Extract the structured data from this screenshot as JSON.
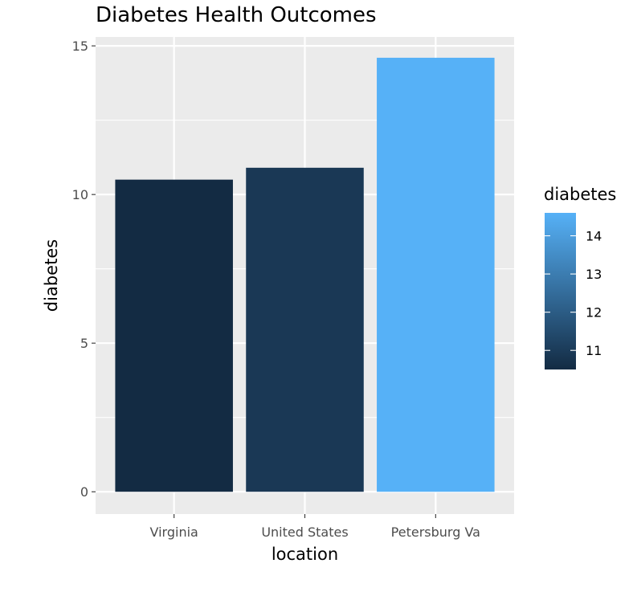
{
  "chart_data": {
    "type": "bar",
    "title": "Diabetes Health Outcomes",
    "xlabel": "location",
    "ylabel": "diabetes",
    "categories": [
      "Virginia",
      "United States",
      "Petersburg Va"
    ],
    "values": [
      10.5,
      10.9,
      14.6
    ],
    "ylim": [
      -0.75,
      15.3
    ],
    "yticks": [
      0,
      5,
      10,
      15
    ],
    "grid": true,
    "legend": {
      "title": "diabetes",
      "position": "right",
      "type": "colorbar",
      "range": [
        10.5,
        14.6
      ],
      "ticks": [
        11,
        12,
        13,
        14
      ],
      "color_low": "#132b43",
      "color_high": "#56b1f7"
    },
    "colors": {
      "panel_background": "#ebebeb",
      "grid": "#ffffff"
    }
  }
}
